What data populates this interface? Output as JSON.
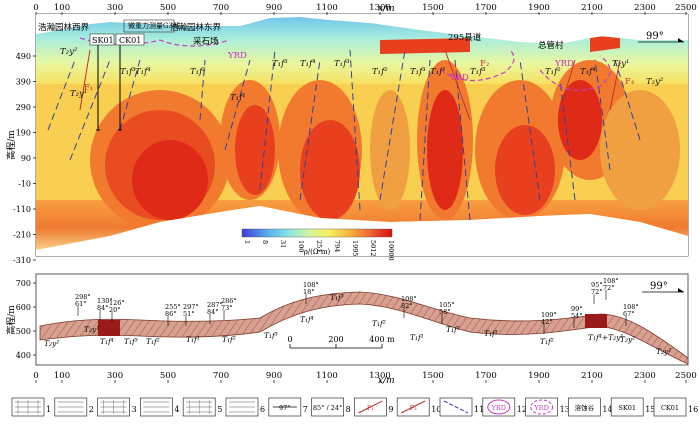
{
  "top_panel": {
    "x_ticks": [
      "0",
      "100",
      "300",
      "500",
      "700",
      "900",
      "1100",
      "1300",
      "1500",
      "1700",
      "1900",
      "2100",
      "2300",
      "2500"
    ],
    "x_unit": "x/m",
    "y_ticks": [
      "490",
      "390",
      "290",
      "190",
      "90",
      "-10",
      "-110",
      "-210",
      "-310"
    ],
    "y_label": "高程/m",
    "azimuth": "99°",
    "place_labels": [
      "浩瀚园林西界",
      "微重力测量G3线",
      "浩瀚园林东界",
      "采石场",
      "295县道",
      "总管村"
    ],
    "well_labels": [
      "SK01",
      "CK01"
    ],
    "unit_labels": [
      "T₂y²",
      "T₂y¹",
      "T₁f³",
      "T₁f⁴",
      "T₁f²",
      "T₁f¹",
      "T₁f³",
      "T₁f⁴",
      "T₁f³",
      "T₁f²",
      "T₁f³",
      "T₁f¹",
      "T₁f³",
      "T₁f²",
      "T₁f⁴",
      "T₂y¹",
      "T₂y²"
    ],
    "yrd_labels": [
      "YRD",
      "YRD",
      "YRD"
    ],
    "fault_labels": [
      "F₁",
      "F₂",
      "F₃",
      "F₄"
    ],
    "colorbar_ticks": [
      "1",
      "8",
      "31",
      "100",
      "251",
      "794",
      "1995",
      "5012",
      "10000"
    ],
    "colorbar_title": "ρ/(Ω·m)"
  },
  "bottom_panel": {
    "x_ticks": [
      "0",
      "100",
      "300",
      "500",
      "700",
      "900",
      "1100",
      "1300",
      "1500",
      "1700",
      "1900",
      "2100",
      "2300",
      "2500"
    ],
    "x_unit": "x/m",
    "y_ticks": [
      "700",
      "600",
      "500",
      "400"
    ],
    "y_label": "高程/m",
    "azimuth": "99°",
    "scale_ticks": [
      "0",
      "200",
      "400 m"
    ],
    "units": [
      "T₂y²",
      "T₂y¹",
      "T₁f⁴",
      "T₁f³",
      "T₁f²",
      "T₁f¹",
      "T₁f²",
      "T₁f³",
      "T₁f⁴",
      "T₁f³",
      "T₁f²",
      "T₁f¹",
      "T₁f²",
      "T₁f¹",
      "T₁f²",
      "T₁f⁴+T₂y¹",
      "T₂y²",
      "T₂y²"
    ],
    "attitudes": [
      {
        "az": "298°",
        "dip": "61°"
      },
      {
        "az": "130°",
        "dip": "84°"
      },
      {
        "az": "126°",
        "dip": "20°"
      },
      {
        "az": "255°",
        "dip": "86°"
      },
      {
        "az": "297°",
        "dip": "51°"
      },
      {
        "az": "287°",
        "dip": "84°"
      },
      {
        "az": "286°",
        "dip": "73°"
      },
      {
        "az": "108°",
        "dip": "18°"
      },
      {
        "az": "108°",
        "dip": "82°"
      },
      {
        "az": "105°",
        "dip": "58°"
      },
      {
        "az": "109°",
        "dip": "42°"
      },
      {
        "az": "99°",
        "dip": "54°"
      },
      {
        "az": "95°",
        "dip": "72°"
      },
      {
        "az": "108°",
        "dip": "72°"
      },
      {
        "az": "108°",
        "dip": "67°"
      }
    ]
  },
  "legend": [
    {
      "num": "1",
      "label": ""
    },
    {
      "num": "2",
      "label": ""
    },
    {
      "num": "3",
      "label": ""
    },
    {
      "num": "4",
      "label": ""
    },
    {
      "num": "5",
      "label": ""
    },
    {
      "num": "6",
      "label": ""
    },
    {
      "num": "7",
      "label": "97°"
    },
    {
      "num": "8",
      "label": "85° / 24°"
    },
    {
      "num": "9",
      "label": "F₁"
    },
    {
      "num": "10",
      "label": "F₂"
    },
    {
      "num": "11",
      "label": ""
    },
    {
      "num": "12",
      "label": "YRD"
    },
    {
      "num": "13",
      "label": "YRD"
    },
    {
      "num": "14",
      "label": "溶蚀谷"
    },
    {
      "num": "15",
      "label": "SK01"
    },
    {
      "num": "16",
      "label": "CK01"
    }
  ]
}
